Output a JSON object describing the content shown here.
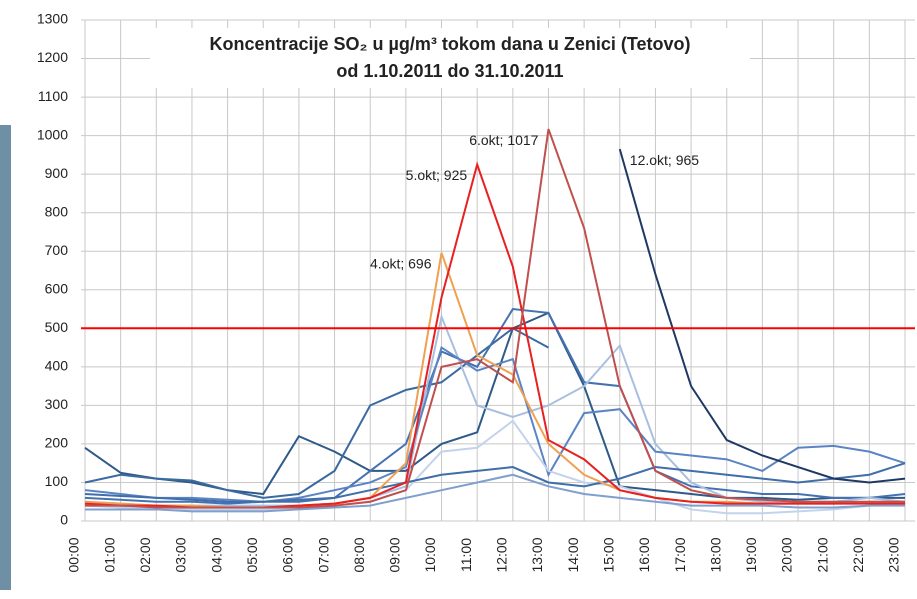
{
  "chart_data": {
    "type": "line",
    "title": "Koncentracije SO₂ u µg/m³ tokom dana u Zenici (Tetovo)",
    "subtitle": "od 1.10.2011 do 31.10.2011",
    "categories": [
      "00:00",
      "01:00",
      "02:00",
      "03:00",
      "04:00",
      "05:00",
      "06:00",
      "07:00",
      "08:00",
      "09:00",
      "10:00",
      "11:00",
      "12:00",
      "13:00",
      "14:00",
      "15:00",
      "16:00",
      "17:00",
      "18:00",
      "19:00",
      "20:00",
      "21:00",
      "22:00",
      "23:00"
    ],
    "ylim": [
      0,
      1300
    ],
    "yticks": [
      0,
      100,
      200,
      300,
      400,
      500,
      600,
      700,
      800,
      900,
      1000,
      1100,
      1200,
      1300
    ],
    "grid": true,
    "threshold": 500,
    "threshold_color": "#ff0000",
    "series": [
      {
        "color": "#2e5a88",
        "values": [
          190,
          125,
          110,
          100,
          80,
          70,
          220,
          180,
          130,
          130,
          200,
          230,
          500,
          540,
          350,
          90,
          80,
          70,
          60,
          60,
          55,
          60,
          60,
          60
        ]
      },
      {
        "color": "#3a6aa0",
        "values": [
          100,
          120,
          110,
          105,
          80,
          60,
          70,
          130,
          300,
          340,
          360,
          430,
          500,
          450,
          null,
          null,
          null,
          null,
          null,
          null,
          null,
          null,
          null,
          null
        ]
      },
      {
        "color": "#4472b0",
        "values": [
          60,
          55,
          50,
          50,
          45,
          50,
          50,
          60,
          130,
          200,
          440,
          400,
          550,
          540,
          360,
          350,
          130,
          90,
          80,
          70,
          70,
          60,
          60,
          70
        ]
      },
      {
        "color": "#a9bfe0",
        "values": [
          50,
          45,
          40,
          40,
          40,
          40,
          40,
          45,
          60,
          90,
          530,
          300,
          270,
          300,
          350,
          455,
          200,
          100,
          60,
          50,
          50,
          50,
          60,
          50
        ]
      },
      {
        "color": "#5b84c4",
        "values": [
          80,
          70,
          60,
          60,
          55,
          50,
          60,
          80,
          100,
          140,
          450,
          390,
          420,
          120,
          280,
          290,
          180,
          170,
          160,
          130,
          190,
          195,
          180,
          150
        ]
      },
      {
        "color": "#c3d3ec",
        "values": [
          40,
          35,
          30,
          30,
          30,
          30,
          35,
          40,
          50,
          80,
          180,
          190,
          260,
          130,
          100,
          90,
          60,
          30,
          20,
          20,
          25,
          30,
          40,
          50
        ]
      },
      {
        "color": "#3f6ea8",
        "values": [
          70,
          65,
          60,
          55,
          50,
          50,
          55,
          60,
          80,
          100,
          120,
          130,
          140,
          100,
          90,
          110,
          140,
          130,
          120,
          110,
          100,
          110,
          120,
          150
        ]
      },
      {
        "color": "#7f9fcf",
        "values": [
          30,
          30,
          30,
          25,
          25,
          25,
          30,
          35,
          40,
          60,
          80,
          100,
          120,
          90,
          70,
          60,
          50,
          40,
          40,
          40,
          35,
          35,
          40,
          40
        ]
      },
      {
        "color": "#f0a050",
        "values": [
          50,
          45,
          40,
          40,
          35,
          35,
          40,
          45,
          60,
          150,
          696,
          430,
          380,
          200,
          120,
          80,
          60,
          50,
          50,
          45,
          45,
          45,
          50,
          50
        ]
      },
      {
        "color": "#e82020",
        "values": [
          45,
          40,
          40,
          35,
          35,
          35,
          40,
          45,
          60,
          100,
          580,
          925,
          660,
          210,
          160,
          80,
          60,
          50,
          45,
          45,
          45,
          45,
          45,
          45
        ]
      },
      {
        "color": "#c0504d",
        "values": [
          40,
          40,
          35,
          35,
          35,
          35,
          35,
          40,
          50,
          80,
          400,
          420,
          360,
          1017,
          760,
          350,
          130,
          80,
          60,
          55,
          50,
          50,
          50,
          50
        ]
      },
      {
        "color": "#1f3864",
        "values": [
          null,
          null,
          null,
          null,
          null,
          null,
          null,
          null,
          null,
          null,
          null,
          null,
          null,
          null,
          null,
          965,
          640,
          350,
          210,
          170,
          140,
          110,
          100,
          110
        ]
      }
    ],
    "annotations": [
      {
        "text": "4.okt; 696",
        "x": "10:00",
        "y": 696
      },
      {
        "text": "5.okt; 925",
        "x": "11:00",
        "y": 925
      },
      {
        "text": "6.okt; 1017",
        "x": "13:00",
        "y": 1017
      },
      {
        "text": "12.okt; 965",
        "x": "15:00",
        "y": 965
      }
    ]
  }
}
